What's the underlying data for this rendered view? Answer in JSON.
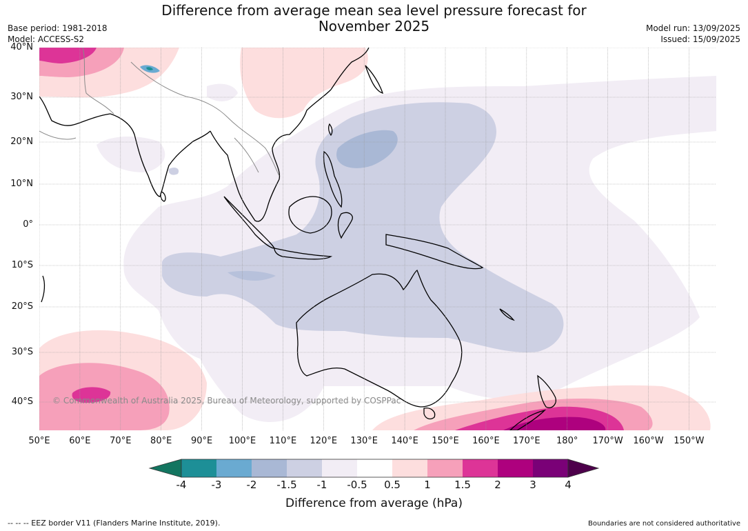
{
  "header": {
    "title_line1": "Difference from average mean sea level pressure forecast for",
    "title_line2": "November 2025",
    "base_period": "Base period: 1981-2018",
    "model": "Model: ACCESS-S2",
    "model_run": "Model run: 13/09/2025",
    "issued": "Issued: 15/09/2025"
  },
  "map": {
    "lat_labels": [
      "40°N",
      "30°N",
      "20°N",
      "10°N",
      "0°",
      "10°S",
      "20°S",
      "30°S",
      "40°S"
    ],
    "lon_labels": [
      "50°E",
      "60°E",
      "70°E",
      "80°E",
      "90°E",
      "100°E",
      "110°E",
      "120°E",
      "130°E",
      "140°E",
      "150°E",
      "160°E",
      "170°E",
      "180°",
      "170°W",
      "160°W",
      "150°W"
    ],
    "copyright": "© Commonwealth of Australia 2025, Bureau of Meteorology, supported by COSPPac",
    "ocean_color": "#ffffff",
    "land_outline_color": "#000000",
    "border_color": "#888888"
  },
  "colorbar": {
    "ticks": [
      "-4",
      "-3",
      "-2",
      "-1.5",
      "-1",
      "-0.5",
      "0.5",
      "1",
      "1.5",
      "2",
      "3",
      "4"
    ],
    "colors": [
      "#137560",
      "#1d8f97",
      "#6aaad1",
      "#a9b8d5",
      "#cdd0e3",
      "#f2edf5",
      "#ffffff",
      "#fddede",
      "#f6a0ba",
      "#dd3497",
      "#ae017e",
      "#7a0177",
      "#4d004b"
    ],
    "label": "Difference from average (hPa)"
  },
  "footer": {
    "eez_legend": "--  --  -- EEZ border V11 (Flanders Marine Institute, 2019).",
    "boundaries_note": "Boundaries are not considered authoritative"
  }
}
